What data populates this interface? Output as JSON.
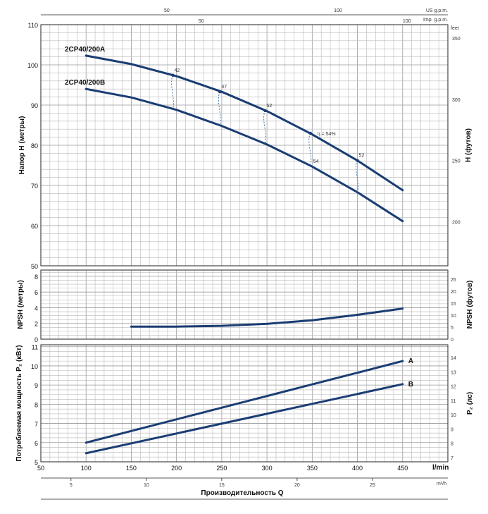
{
  "chart_data": [
    {
      "type": "line",
      "panel": "head",
      "ylabel": "Напор H (метры)",
      "ylabel_right": "H (футов)",
      "ylim": [
        50,
        110
      ],
      "yticks": [
        "110",
        "100",
        "90",
        "80",
        "70",
        "60",
        "50"
      ],
      "y2ticks": [
        "350",
        "300",
        "250",
        "200"
      ],
      "x2label_right": "feet",
      "top_axis": {
        "us_label": "US g.p.m.",
        "imp_label": "Imp. g.p.m.",
        "us_ticks": [
          "50",
          "100"
        ],
        "imp_ticks": [
          "50",
          "100"
        ]
      },
      "series": [
        {
          "name": "2CP40/200A",
          "x": [
            100,
            150,
            200,
            250,
            300,
            350,
            400,
            450
          ],
          "y": [
            102.3,
            100.2,
            97.2,
            93.3,
            88.5,
            82.7,
            76.2,
            68.8
          ]
        },
        {
          "name": "2CP40/200B",
          "x": [
            100,
            150,
            200,
            250,
            300,
            350,
            400,
            450
          ],
          "y": [
            94.0,
            91.9,
            88.8,
            84.8,
            80.2,
            74.7,
            68.3,
            61.1
          ]
        }
      ],
      "efficiency": [
        {
          "label": "42",
          "x": 196,
          "ya": 97.4,
          "yb": 89.0
        },
        {
          "label": "47",
          "x": 248,
          "ya": 93.3,
          "yb": 84.7
        },
        {
          "label": "52",
          "x": 298,
          "ya": 88.6,
          "yb": 80.4
        },
        {
          "label": "η = 54%",
          "x": 348,
          "ya": 83.0,
          "yb": 74.9,
          "label_b": "54"
        },
        {
          "label": "52",
          "x": 400,
          "ya": 76.2,
          "yb": 68.3
        }
      ]
    },
    {
      "type": "line",
      "panel": "npsh",
      "ylabel": "NPSH (метры)",
      "ylabel_right": "NPSH (футов)",
      "ylim": [
        0,
        8
      ],
      "yticks": [
        "8",
        "6",
        "4",
        "2",
        "0"
      ],
      "y2ticks": [
        "25",
        "20",
        "15",
        "10",
        "5",
        "0"
      ],
      "series": [
        {
          "name": "NPSH",
          "x": [
            150,
            200,
            250,
            300,
            350,
            400,
            450
          ],
          "y": [
            1.6,
            1.6,
            1.7,
            1.95,
            2.4,
            3.1,
            3.9
          ]
        }
      ]
    },
    {
      "type": "line",
      "panel": "power",
      "ylabel": "Потребляемая мощность P₂ (кВт)",
      "ylabel_right": "P₂ (лс)",
      "ylim": [
        5,
        11
      ],
      "yticks": [
        "11",
        "10",
        "9",
        "8",
        "7",
        "6",
        "5"
      ],
      "y2ticks": [
        "14",
        "13",
        "12",
        "11",
        "10",
        "9",
        "8",
        "7"
      ],
      "xlabel": "Производительность Q",
      "x_unit": "l/min",
      "x_unit2": "m³/h",
      "xticks": [
        "50",
        "100",
        "150",
        "200",
        "250",
        "300",
        "350",
        "400",
        "450"
      ],
      "x2ticks": [
        "5",
        "10",
        "15",
        "20",
        "25"
      ],
      "series": [
        {
          "name": "A",
          "x": [
            100,
            450
          ],
          "y": [
            6.0,
            10.25
          ]
        },
        {
          "name": "B",
          "x": [
            100,
            450
          ],
          "y": [
            5.45,
            9.05
          ]
        }
      ]
    }
  ]
}
